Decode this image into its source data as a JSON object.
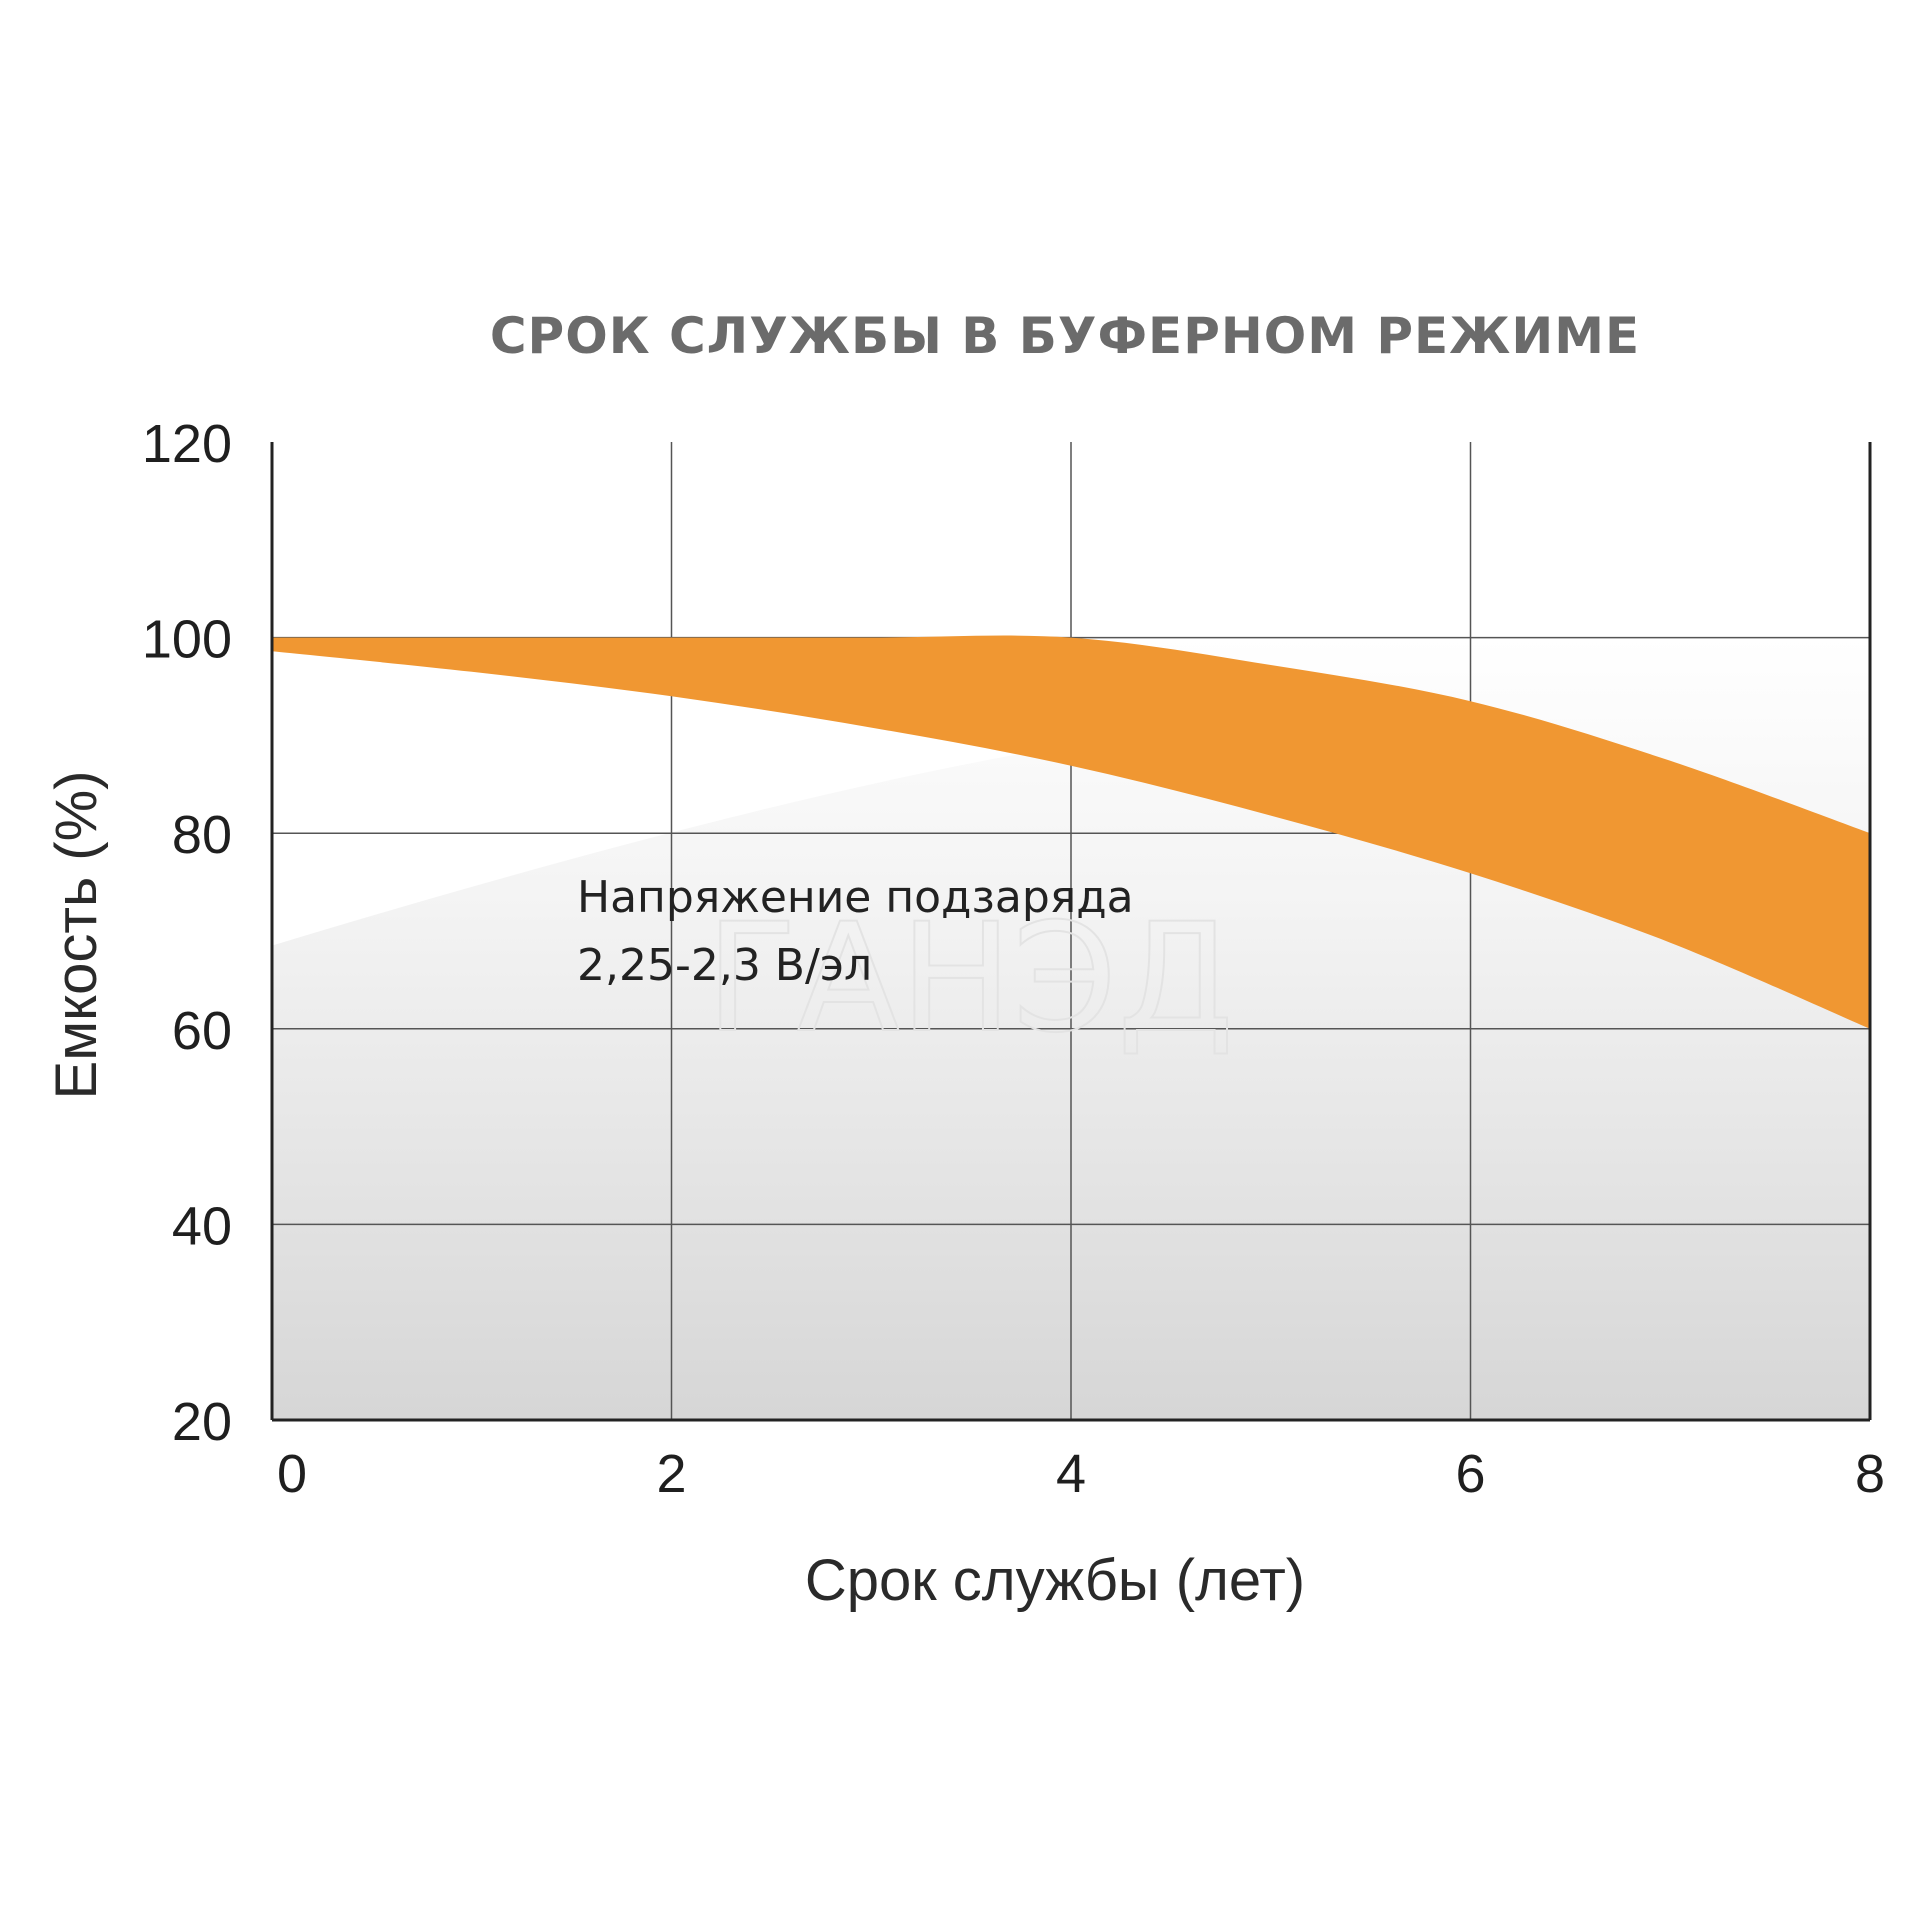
{
  "chart_data": {
    "type": "area",
    "title": "СРОК СЛУЖБЫ В БУФЕРНОМ РЕЖИМЕ",
    "xlabel": "Срок службы (лет)",
    "ylabel": "Емкость (%)",
    "xlim": [
      0,
      8
    ],
    "ylim": [
      20,
      120
    ],
    "x_ticks": [
      "0",
      "2",
      "4",
      "6",
      "8"
    ],
    "y_ticks": [
      "120",
      "100",
      "80",
      "60",
      "40",
      "20"
    ],
    "x_tick_values": [
      0,
      2,
      4,
      6,
      8
    ],
    "y_tick_values": [
      120,
      100,
      80,
      60,
      40,
      20
    ],
    "grid": true,
    "annotation": {
      "line1": "Напряжение подзаряда",
      "line2": "2,25-2,3 В/эл"
    },
    "watermark": "ГАНЭД",
    "series": [
      {
        "color": "#f09732",
        "upper": {
          "x": [
            0,
            1,
            2,
            3,
            4,
            5,
            6,
            7,
            8
          ],
          "y": [
            100,
            100,
            100,
            100,
            100,
            97.2,
            93.5,
            87.4,
            80
          ]
        },
        "lower": {
          "x": [
            0,
            1,
            2,
            3,
            4,
            5,
            6,
            7,
            8
          ],
          "y": [
            98.6,
            96.5,
            94,
            90.8,
            86.9,
            81.8,
            75.9,
            68.8,
            60
          ]
        }
      }
    ]
  }
}
